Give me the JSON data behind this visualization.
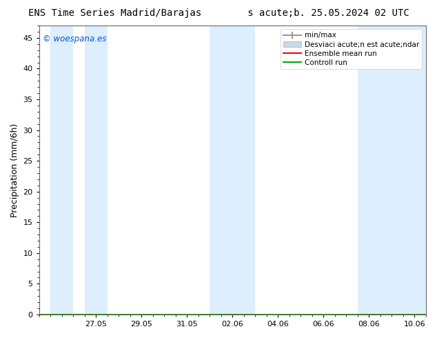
{
  "title": "ENS Time Series Madrid/Barajas        s acute;b. 25.05.2024 02 UTC",
  "ylabel": "Precipitation (mm/6h)",
  "watermark": "© woespana.es",
  "watermark_color": "#0055cc",
  "background_color": "#ffffff",
  "plot_bg_color": "#ffffff",
  "ylim": [
    0,
    47
  ],
  "yticks": [
    0,
    5,
    10,
    15,
    20,
    25,
    30,
    35,
    40,
    45
  ],
  "xtick_labels": [
    "27.05",
    "29.05",
    "31.05",
    "02.06",
    "04.06",
    "06.06",
    "08.06",
    "10.06"
  ],
  "xtick_positions": [
    2,
    4,
    6,
    8,
    10,
    12,
    14,
    16
  ],
  "x_min": -0.5,
  "x_max": 16.5,
  "band_color": "#ddeeff",
  "band_positions": [
    [
      0.0,
      1.0
    ],
    [
      1.5,
      2.5
    ],
    [
      7.0,
      9.0
    ],
    [
      13.5,
      16.5
    ]
  ],
  "legend_labels": [
    "min/max",
    "Desviaci acute;n est acute;ndar",
    "Ensemble mean run",
    "Controll run"
  ],
  "legend_colors": [
    "#999999",
    "#c8daea",
    "#ff0000",
    "#00aa00"
  ],
  "title_fontsize": 10,
  "axis_label_fontsize": 9,
  "tick_fontsize": 8,
  "legend_fontsize": 7.5
}
